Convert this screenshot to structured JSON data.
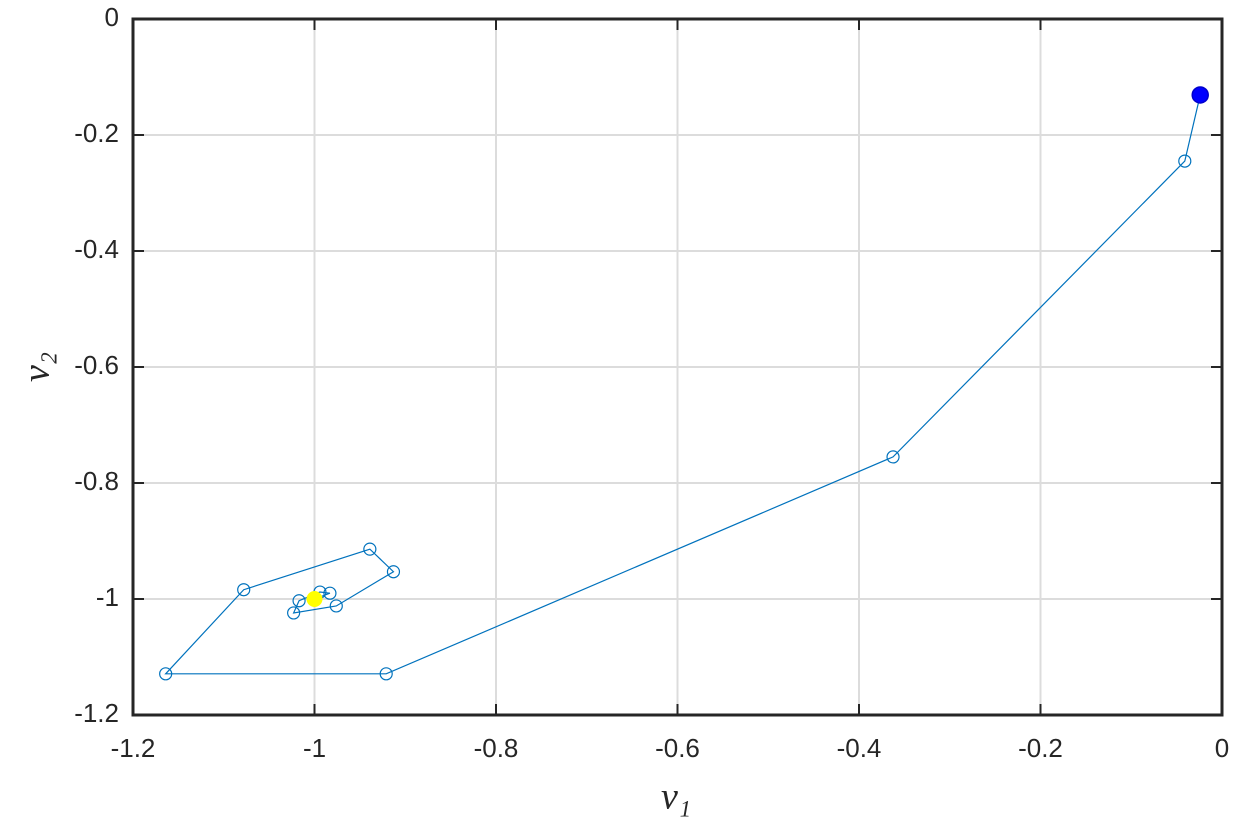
{
  "chart_data": {
    "type": "line",
    "xlabel": "v₁",
    "ylabel": "v₂",
    "xlim": [
      -1.2,
      0
    ],
    "ylim": [
      -1.2,
      0
    ],
    "xticks": [
      -1.2,
      -1,
      -0.8,
      -0.6,
      -0.4,
      -0.2,
      0
    ],
    "yticks": [
      -1.2,
      -1,
      -0.8,
      -0.6,
      -0.4,
      -0.2,
      0
    ],
    "grid": true,
    "series": [
      {
        "color": "#0072bd",
        "marker": "open",
        "x": [
          -0.024,
          -0.041,
          -0.3625,
          -0.921,
          -1.164,
          -1.078,
          -0.939,
          -0.913,
          -0.976,
          -1.023,
          -1.017,
          -0.994,
          -0.983,
          -1.0
        ],
        "values": [
          -0.131,
          -0.245,
          -0.755,
          -1.129,
          -1.129,
          -0.984,
          -0.914,
          -0.953,
          -1.012,
          -1.024,
          -1.003,
          -0.988,
          -0.99,
          -1.0
        ]
      },
      {
        "color": "#0000ff",
        "marker": "filled",
        "x": [
          -0.024
        ],
        "values": [
          -0.131
        ]
      },
      {
        "color": "#ffff00",
        "marker": "filled",
        "x": [
          -1.0
        ],
        "values": [
          -1.0
        ]
      }
    ]
  }
}
